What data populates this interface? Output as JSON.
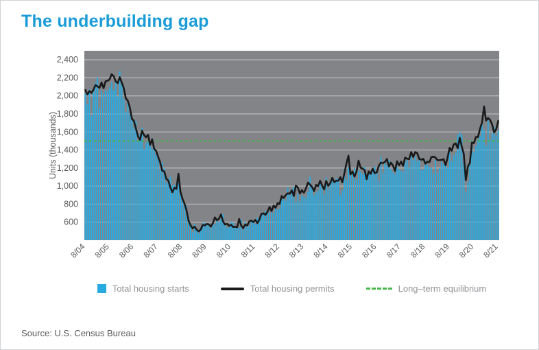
{
  "page": {
    "title": "The underbuilding gap",
    "source": "Source: U.S. Census Bureau"
  },
  "colors": {
    "title": "#1b9cd8",
    "bars": "#29abe2",
    "permits_line": "#1a1a1a",
    "equilibrium": "#46b749",
    "plot_bg": "#828487",
    "grid": "#c8c9cb",
    "tick_text": "#58595b",
    "legend_text": "#919396"
  },
  "chart_data": {
    "type": "bar+line",
    "title": "The underbuilding gap",
    "ylabel": "Units (thousands)",
    "ylim": [
      400,
      2500
    ],
    "yticks": [
      600,
      800,
      1000,
      1200,
      1400,
      1600,
      1800,
      2000,
      2200,
      2400
    ],
    "x_tick_labels": [
      "8/04",
      "8/05",
      "8/06",
      "8/07",
      "8/08",
      "8/09",
      "8/10",
      "8/11",
      "8/12",
      "8/13",
      "8/14",
      "8/15",
      "8/16",
      "8/17",
      "8/18",
      "8/19",
      "8/20",
      "8/21"
    ],
    "x_tick_every": 12,
    "x_range": "monthly, Aug 2004 - Aug 2021",
    "equilibrium_value": 1500,
    "legend": [
      {
        "label": "Total housing starts",
        "swatch": "bar"
      },
      {
        "label": "Total housing permits",
        "swatch": "line"
      },
      {
        "label": "Long–term equilibrium",
        "swatch": "dashed"
      }
    ],
    "series": [
      {
        "name": "Total housing starts",
        "type": "bar",
        "values": [
          2024,
          1905,
          2072,
          1782,
          2042,
          2144,
          2207,
          1864,
          2061,
          2025,
          2068,
          2054,
          2095,
          2151,
          2065,
          2147,
          1994,
          2273,
          2119,
          1969,
          1821,
          1942,
          1802,
          1737,
          1650,
          1720,
          1491,
          1570,
          1649,
          1409,
          1480,
          1495,
          1490,
          1415,
          1448,
          1354,
          1330,
          1183,
          1264,
          1197,
          1037,
          1084,
          1103,
          1005,
          1013,
          975,
          1046,
          923,
          844,
          820,
          777,
          652,
          560,
          490,
          582,
          505,
          478,
          540,
          585,
          594,
          586,
          585,
          534,
          588,
          581,
          614,
          604,
          636,
          687,
          583,
          536,
          546,
          599,
          594,
          543,
          545,
          539,
          630,
          517,
          600,
          554,
          561,
          608,
          623,
          585,
          650,
          610,
          702,
          694,
          723,
          718,
          706,
          747,
          706,
          754,
          741,
          749,
          854,
          863,
          834,
          983,
          898,
          969,
          994,
          826,
          915,
          831,
          898,
          885,
          873,
          936,
          1105,
          1010,
          897,
          928,
          950,
          1063,
          984,
          909,
          1098,
          963,
          1028,
          1092,
          1043,
          1087,
          1080,
          900,
          954,
          1190,
          1067,
          1213,
          1147,
          1164,
          1202,
          1073,
          1171,
          1160,
          1128,
          1213,
          1113,
          1155,
          1128,
          1195,
          1218,
          1164,
          1062,
          1328,
          1149,
          1268,
          1236,
          1288,
          1189,
          1154,
          1129,
          1217,
          1185,
          1172,
          1158,
          1265,
          1303,
          1210,
          1334,
          1290,
          1327,
          1276,
          1329,
          1177,
          1184,
          1279,
          1236,
          1211,
          1202,
          1142,
          1291,
          1149,
          1199,
          1267,
          1246,
          1232,
          1204,
          1377,
          1274,
          1340,
          1371,
          1567,
          1601,
          1567,
          1269,
          938,
          1046,
          1273,
          1497,
          1376,
          1448,
          1514,
          1551,
          1680,
          1625,
          1447,
          1725,
          1514,
          1594,
          1657,
          1562,
          1615
        ]
      },
      {
        "name": "Total housing permits",
        "type": "line",
        "values": [
          2066,
          2014,
          2053,
          2033,
          2069,
          2120,
          2105,
          2090,
          2148,
          2085,
          2162,
          2167,
          2184,
          2240,
          2219,
          2160,
          2142,
          2207,
          2147,
          2085,
          1973,
          1946,
          1869,
          1746,
          1722,
          1638,
          1553,
          1513,
          1613,
          1566,
          1541,
          1569,
          1457,
          1520,
          1413,
          1389,
          1322,
          1261,
          1170,
          1162,
          1080,
          1061,
          984,
          932,
          982,
          969,
          1138,
          937,
          857,
          805,
          730,
          615,
          564,
          531,
          550,
          516,
          498,
          518,
          570,
          564,
          580,
          575,
          551,
          589,
          653,
          622,
          637,
          685,
          610,
          574,
          583,
          559,
          571,
          547,
          550,
          544,
          635,
          563,
          534,
          574,
          563,
          609,
          617,
          601,
          625,
          589,
          630,
          692,
          698,
          682,
          715,
          769,
          723,
          784,
          760,
          811,
          801,
          890,
          868,
          900,
          920,
          915,
          952,
          890,
          1005,
          985,
          918,
          954,
          926,
          974,
          1039,
          1017,
          991,
          945,
          1014,
          1000,
          1059,
          1005,
          963,
          1057,
          1003,
          1031,
          1092,
          1043,
          1060,
          1060,
          1098,
          1042,
          1140,
          1250,
          1337,
          1130,
          1161,
          1105,
          1161,
          1282,
          1204,
          1193,
          1177,
          1077,
          1163,
          1136,
          1193,
          1144,
          1152,
          1225,
          1260,
          1255,
          1266,
          1300,
          1219,
          1260,
          1228,
          1168,
          1275,
          1230,
          1272,
          1225,
          1316,
          1303,
          1300,
          1377,
          1323,
          1377,
          1364,
          1301,
          1292,
          1303,
          1249,
          1270,
          1265,
          1322,
          1326,
          1316,
          1287,
          1288,
          1290,
          1299,
          1232,
          1317,
          1425,
          1391,
          1461,
          1474,
          1420,
          1536,
          1438,
          1356,
          1066,
          1216,
          1258,
          1483,
          1476,
          1545,
          1544,
          1635,
          1704,
          1883,
          1726,
          1755,
          1733,
          1683,
          1594,
          1630,
          1721
        ]
      },
      {
        "name": "Long–term equilibrium",
        "type": "dashed-horizontal-line",
        "value": 1500
      }
    ]
  }
}
